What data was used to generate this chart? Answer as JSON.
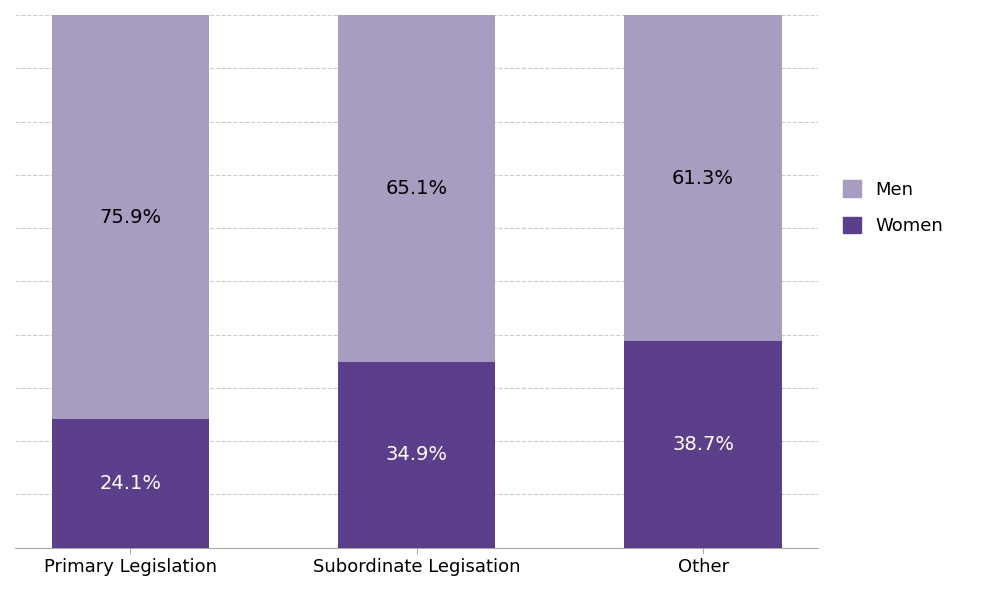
{
  "categories": [
    "Primary Legislation",
    "Subordinate Legisation",
    "Other"
  ],
  "women_values": [
    24.1,
    34.9,
    38.7
  ],
  "men_values": [
    75.9,
    65.1,
    61.3
  ],
  "women_color": "#5B3F8A",
  "men_color": "#A89CC0",
  "women_label": "Women",
  "men_label": "Men",
  "ylim": [
    0,
    100
  ],
  "bar_width": 0.55,
  "background_color": "#ffffff",
  "grid_color": "#cccccc",
  "label_fontsize": 14,
  "tick_fontsize": 13,
  "legend_fontsize": 13
}
